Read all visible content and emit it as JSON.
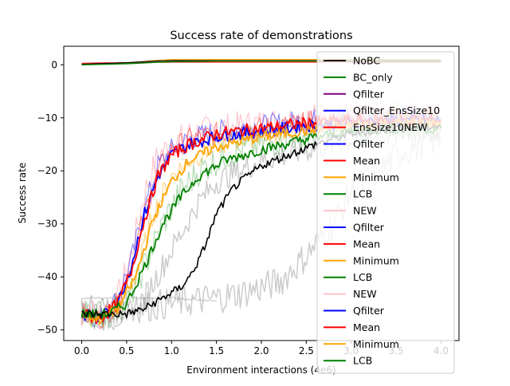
{
  "chart_data": {
    "type": "line",
    "title": "Success rate of demonstrations",
    "xlabel": "Environment interactions (4e6)",
    "ylabel": "Success rate",
    "xlim": [
      -0.2,
      4.2
    ],
    "ylim": [
      -52,
      3.5
    ],
    "xticks": [
      0.0,
      0.5,
      1.0,
      1.5,
      2.0,
      2.5,
      3.0,
      3.5,
      4.0
    ],
    "xtick_labels": [
      "0.0",
      "0.5",
      "1.0",
      "1.5",
      "2.0",
      "2.5",
      "3.0",
      "3.5",
      "4.0"
    ],
    "yticks": [
      0,
      -10,
      -20,
      -30,
      -40,
      -50
    ],
    "ytick_labels": [
      "0",
      "−10",
      "−20",
      "−30",
      "−40",
      "−50"
    ],
    "grid": false,
    "legend_position": "right",
    "legend": [
      {
        "label": "NoBC",
        "color": "#000000"
      },
      {
        "label": "BC_only",
        "color": "#008000"
      },
      {
        "label": "Qfilter",
        "color": "#800080"
      },
      {
        "label": "Qfilter_EnsSize10",
        "color": "#0000ff"
      },
      {
        "label": "EnsSize10NEW",
        "color": "#ff0000"
      },
      {
        "label": "Qfilter",
        "color": "#0000ff"
      },
      {
        "label": "Mean",
        "color": "#ff0000"
      },
      {
        "label": "Minimum",
        "color": "#ffa500"
      },
      {
        "label": "LCB",
        "color": "#008000"
      },
      {
        "label": "NEW",
        "color": "#ffc0cb"
      },
      {
        "label": "Qfilter",
        "color": "#0000ff"
      },
      {
        "label": "Mean",
        "color": "#ff0000"
      },
      {
        "label": "Minimum",
        "color": "#ffa500"
      },
      {
        "label": "LCB",
        "color": "#008000"
      },
      {
        "label": "NEW",
        "color": "#ffc0cb"
      },
      {
        "label": "Qfilter",
        "color": "#0000ff"
      },
      {
        "label": "Mean",
        "color": "#ff0000"
      },
      {
        "label": "Minimum",
        "color": "#ffa500"
      },
      {
        "label": "LCB",
        "color": "#008000"
      }
    ],
    "series": [
      {
        "color": "#ffc0cb",
        "width": 1.2,
        "opacity": 0.9,
        "noise": 2.8,
        "x": [
          0.0,
          0.2,
          0.4,
          0.55,
          0.7,
          0.85,
          1.0,
          1.2,
          1.5,
          2.0,
          2.5,
          3.0,
          3.5,
          4.0
        ],
        "y": [
          -46,
          -47,
          -44,
          -36,
          -24,
          -17,
          -15,
          -13,
          -12,
          -11,
          -10,
          -9.8,
          -9.5,
          -9.5
        ]
      },
      {
        "color": "#0000ff",
        "width": 1.2,
        "opacity": 0.45,
        "noise": 2.2,
        "x": [
          0.0,
          0.2,
          0.4,
          0.55,
          0.7,
          0.85,
          1.0,
          1.2,
          1.5,
          2.0,
          2.5,
          3.0,
          3.5,
          4.0
        ],
        "y": [
          -46,
          -48,
          -44,
          -37,
          -27,
          -19,
          -16,
          -14,
          -12.5,
          -11.5,
          -10.5,
          -10,
          -10,
          -10
        ]
      },
      {
        "color": "#ff0000",
        "width": 1.2,
        "opacity": 0.45,
        "noise": 2.2,
        "x": [
          0.0,
          0.2,
          0.4,
          0.55,
          0.7,
          0.85,
          1.0,
          1.2,
          1.5,
          2.0,
          2.5,
          3.0,
          3.5,
          4.0
        ],
        "y": [
          -47,
          -48,
          -45,
          -38,
          -28,
          -20,
          -16,
          -14,
          -13,
          -12,
          -11,
          -10.5,
          -10,
          -10
        ]
      },
      {
        "color": "#ffa500",
        "width": 1.2,
        "opacity": 0.45,
        "noise": 2.2,
        "x": [
          0.0,
          0.2,
          0.4,
          0.6,
          0.8,
          1.0,
          1.2,
          1.5,
          2.0,
          2.5,
          3.0,
          3.5,
          4.0
        ],
        "y": [
          -47,
          -48,
          -46,
          -40,
          -28,
          -21,
          -18,
          -15,
          -13,
          -12,
          -11,
          -10.5,
          -10.5
        ]
      },
      {
        "color": "#008000",
        "width": 1.2,
        "opacity": 0.3,
        "noise": 3.0,
        "x": [
          0.0,
          0.3,
          0.5,
          0.7,
          0.9,
          1.1,
          1.3,
          1.6,
          2.0,
          2.5,
          3.0,
          3.5,
          4.0
        ],
        "y": [
          -47,
          -47,
          -45,
          -38,
          -30,
          -24,
          -20,
          -17,
          -15,
          -13,
          -12,
          -11.5,
          -11
        ]
      },
      {
        "color": "#808080",
        "width": 1.5,
        "opacity": 0.4,
        "noise": 2.5,
        "x": [
          0.0,
          0.3,
          0.5,
          0.7,
          0.9,
          1.1,
          1.3,
          1.5,
          2.0,
          2.5,
          3.0,
          3.5,
          4.0
        ],
        "y": [
          -47,
          -48,
          -47,
          -44,
          -38,
          -32,
          -26,
          -22,
          -18,
          -16,
          -14,
          -13,
          -12
        ]
      },
      {
        "color": "#808080",
        "width": 1.5,
        "opacity": 0.4,
        "noise": 3.0,
        "x": [
          0.0,
          0.5,
          1.0,
          1.5,
          1.8,
          2.2,
          2.5,
          2.8,
          3.0,
          3.3,
          3.6,
          4.0
        ],
        "y": [
          -46,
          -46,
          -45,
          -44,
          -43,
          -41,
          -36,
          -30,
          -24,
          -20,
          -16,
          -14
        ]
      },
      {
        "color": "#808080",
        "width": 1.5,
        "opacity": 0.35,
        "noise": 0.2,
        "x": [
          0.0,
          0.5,
          1.0,
          1.5
        ],
        "y": [
          -44,
          -44,
          -44,
          -44.5
        ]
      },
      {
        "color": "#0000ff",
        "width": 1.8,
        "opacity": 1,
        "noise": 1.2,
        "x": [
          0.0,
          0.2,
          0.4,
          0.55,
          0.7,
          0.85,
          1.0,
          1.2,
          1.5,
          2.0,
          2.5,
          3.0,
          3.5,
          4.0
        ],
        "y": [
          -47,
          -48,
          -45,
          -38,
          -28,
          -21,
          -17,
          -15,
          -13.5,
          -12.5,
          -11.5,
          -11,
          -10.5,
          -10.5
        ]
      },
      {
        "color": "#ff0000",
        "width": 1.8,
        "opacity": 1,
        "noise": 1.2,
        "x": [
          0.0,
          0.2,
          0.4,
          0.55,
          0.7,
          0.85,
          1.0,
          1.2,
          1.5,
          2.0,
          2.5,
          3.0,
          3.5,
          4.0
        ],
        "y": [
          -47,
          -48,
          -45,
          -39,
          -29,
          -21,
          -17,
          -15,
          -13,
          -12,
          -11,
          -10.5,
          -10.5,
          -10.5
        ]
      },
      {
        "color": "#ffa500",
        "width": 1.8,
        "opacity": 1,
        "noise": 1.0,
        "x": [
          0.0,
          0.2,
          0.4,
          0.6,
          0.8,
          1.0,
          1.2,
          1.5,
          2.0,
          2.5,
          3.0,
          3.5,
          4.0
        ],
        "y": [
          -47,
          -48,
          -46,
          -40,
          -29,
          -22,
          -18,
          -15.5,
          -13.5,
          -12.5,
          -11.5,
          -11,
          -11
        ]
      },
      {
        "color": "#008000",
        "width": 1.8,
        "opacity": 1,
        "noise": 1.0,
        "x": [
          0.0,
          0.3,
          0.5,
          0.7,
          0.9,
          1.1,
          1.3,
          1.6,
          2.0,
          2.5,
          3.0,
          3.5,
          4.0
        ],
        "y": [
          -47,
          -47,
          -45,
          -38,
          -30,
          -25,
          -21,
          -18,
          -16,
          -14,
          -12.5,
          -12,
          -12
        ]
      },
      {
        "color": "#000000",
        "width": 1.6,
        "opacity": 1,
        "noise": 0.8,
        "x": [
          0.0,
          0.5,
          0.6,
          0.7,
          0.8,
          0.9,
          1.0,
          1.1,
          1.2,
          1.3,
          1.4,
          1.5,
          1.7,
          2.0,
          2.3,
          2.6,
          3.0,
          3.5,
          4.0
        ],
        "y": [
          -47,
          -47,
          -46.5,
          -46,
          -45,
          -44,
          -43,
          -42,
          -40,
          -37,
          -33,
          -28,
          -23,
          -19,
          -17,
          -15,
          -13,
          -12,
          -11.5
        ]
      },
      {
        "color": "#ff0000",
        "width": 1.2,
        "opacity": 1,
        "noise": 0,
        "x": [
          0.0,
          0.5,
          1.0,
          1.5,
          2.0,
          2.5,
          3.0,
          3.5,
          4.0
        ],
        "y": [
          0.3,
          0.4,
          0.5,
          0.5,
          0.5,
          0.5,
          0.5,
          0.5,
          0.5
        ]
      },
      {
        "color": "#ffa500",
        "width": 1.2,
        "opacity": 1,
        "noise": 0,
        "x": [
          0.0,
          0.5,
          0.8,
          1.0,
          1.5,
          2.0,
          2.5,
          3.0,
          3.5,
          4.0
        ],
        "y": [
          0.0,
          0.3,
          0.8,
          1.0,
          1.0,
          1.0,
          1.0,
          1.0,
          1.0,
          1.0
        ]
      },
      {
        "color": "#000000",
        "width": 1.2,
        "opacity": 1,
        "noise": 0,
        "x": [
          0.0,
          0.5,
          0.8,
          1.0,
          1.5,
          2.0,
          2.5,
          3.0,
          3.5,
          4.0
        ],
        "y": [
          0.1,
          0.4,
          0.7,
          0.8,
          0.8,
          0.8,
          0.8,
          0.8,
          0.8,
          0.8
        ]
      },
      {
        "color": "#008000",
        "width": 1.4,
        "opacity": 1,
        "noise": 0,
        "x": [
          0.0,
          0.5,
          1.0,
          1.5,
          2.0,
          2.5,
          3.0,
          3.5,
          4.0
        ],
        "y": [
          0.0,
          0.2,
          0.6,
          0.7,
          0.7,
          0.7,
          0.7,
          0.7,
          0.7
        ]
      }
    ]
  }
}
